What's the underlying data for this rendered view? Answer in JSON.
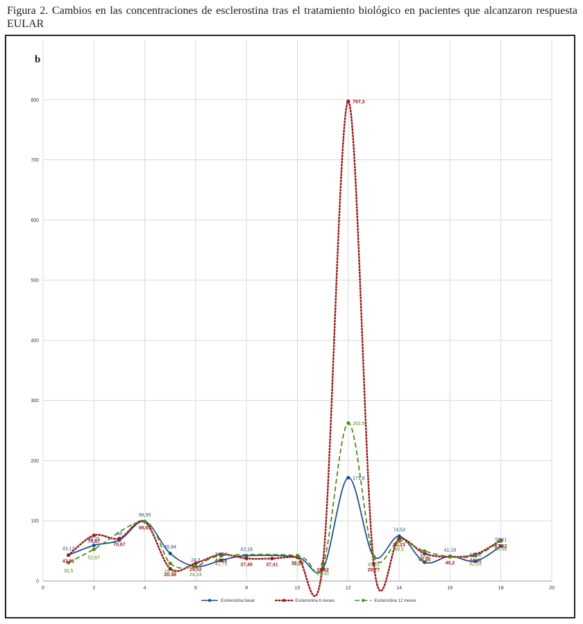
{
  "caption": "Figura 2. Cambios en las concentraciones de esclerostina tras el tratamiento biológico en pacientes que alcanzaron respuesta EULAR",
  "panel_label": "b",
  "chart_data": {
    "type": "line",
    "title": "",
    "xlabel": "",
    "ylabel": "",
    "xlim": [
      0,
      20
    ],
    "ylim": [
      0,
      900
    ],
    "x_ticks": [
      0,
      2,
      4,
      6,
      8,
      10,
      12,
      14,
      16,
      18,
      20
    ],
    "y_ticks": [
      0,
      100,
      200,
      300,
      400,
      500,
      600,
      700,
      800
    ],
    "grid": true,
    "legend": "bottom-center",
    "series": [
      {
        "name": "Esclerostina basal",
        "color": "#1f4e8c",
        "style": "solid",
        "points": [
          [
            1,
            43.12
          ],
          [
            2,
            59.25
          ],
          [
            3,
            68
          ],
          [
            4,
            98.95
          ],
          [
            5,
            45.84
          ],
          [
            6,
            24.3
          ],
          [
            7,
            34.24
          ],
          [
            8,
            42.18
          ],
          [
            10,
            39.55
          ],
          [
            11,
            20
          ],
          [
            12,
            171.8
          ],
          [
            13,
            40.81
          ],
          [
            14,
            74.53
          ],
          [
            15,
            31.2
          ],
          [
            16,
            41.18
          ],
          [
            17,
            33.02
          ],
          [
            18,
            58.11
          ]
        ],
        "labels": [
          {
            "x": 1,
            "text": "43,12"
          },
          {
            "x": 2,
            "text": "59,25"
          },
          {
            "x": 3,
            "text": "68"
          },
          {
            "x": 4,
            "text": "98,95"
          },
          {
            "x": 5,
            "text": "45,84"
          },
          {
            "x": 6,
            "text": "24,3"
          },
          {
            "x": 7,
            "text": "34,24"
          },
          {
            "x": 8,
            "text": "42,18"
          },
          {
            "x": 12,
            "text": "171,8"
          },
          {
            "x": 14,
            "text": "74,53"
          },
          {
            "x": 15,
            "text": "31,2"
          },
          {
            "x": 16,
            "text": "41,18"
          },
          {
            "x": 17,
            "text": "33,02"
          },
          {
            "x": 18,
            "text": "58,11"
          }
        ]
      },
      {
        "name": "Esclerostina 6 meses",
        "color": "#9b1b1b",
        "style": "dotted",
        "points": [
          [
            1,
            43.01
          ],
          [
            2,
            75.87
          ],
          [
            3,
            70.67
          ],
          [
            4,
            98.63
          ],
          [
            5,
            20.48
          ],
          [
            6,
            29.52
          ],
          [
            7,
            44.26
          ],
          [
            8,
            37.46
          ],
          [
            9,
            37.41
          ],
          [
            10,
            39.55
          ],
          [
            11,
            28.62
          ],
          [
            12,
            797.3
          ],
          [
            13,
            28.77
          ],
          [
            14,
            70.23
          ],
          [
            15,
            45.55
          ],
          [
            16,
            40.2
          ],
          [
            17,
            44.21
          ],
          [
            18,
            67.82
          ]
        ],
        "labels": [
          {
            "x": 1,
            "text": "43,01"
          },
          {
            "x": 2,
            "text": "75,87"
          },
          {
            "x": 3,
            "text": "70,67"
          },
          {
            "x": 4,
            "text": "98,63"
          },
          {
            "x": 5,
            "text": "20,48"
          },
          {
            "x": 6,
            "text": "29,52"
          },
          {
            "x": 7,
            "text": "44,26"
          },
          {
            "x": 8,
            "text": "37,46"
          },
          {
            "x": 9,
            "text": "37,41"
          },
          {
            "x": 10,
            "text": "39,55"
          },
          {
            "x": 11,
            "text": "28,62"
          },
          {
            "x": 12,
            "text": "797,3"
          },
          {
            "x": 13,
            "text": "28,77"
          },
          {
            "x": 14,
            "text": "70,23"
          },
          {
            "x": 15,
            "text": "45,55"
          },
          {
            "x": 16,
            "text": "40,2"
          },
          {
            "x": 17,
            "text": "44,21"
          },
          {
            "x": 18,
            "text": "67,82"
          }
        ]
      },
      {
        "name": "Esclerostina 12 meses",
        "color": "#4e8a1a",
        "style": "dashed",
        "points": [
          [
            1,
            30.5
          ],
          [
            2,
            52.67
          ],
          [
            4,
            98.5
          ],
          [
            5,
            29.36
          ],
          [
            6,
            24.24
          ],
          [
            7,
            41.79
          ],
          [
            10,
            42.26
          ],
          [
            11,
            25.95
          ],
          [
            12,
            262.5
          ],
          [
            13,
            40.81
          ],
          [
            14,
            66.5
          ],
          [
            15,
            49.73
          ],
          [
            16,
            40.5
          ],
          [
            17,
            42.03
          ],
          [
            18,
            66.56
          ]
        ],
        "labels": [
          {
            "x": 1,
            "text": "30,5"
          },
          {
            "x": 2,
            "text": "52,67"
          },
          {
            "x": 5,
            "text": "29,36"
          },
          {
            "x": 6,
            "text": "24,24"
          },
          {
            "x": 7,
            "text": "41,79"
          },
          {
            "x": 10,
            "text": "42,26"
          },
          {
            "x": 11,
            "text": "25,95"
          },
          {
            "x": 12,
            "text": "262,5"
          },
          {
            "x": 13,
            "text": "40,81"
          },
          {
            "x": 14,
            "text": "66,5"
          },
          {
            "x": 15,
            "text": "49,73"
          },
          {
            "x": 17,
            "text": "42,03"
          },
          {
            "x": 18,
            "text": "66,56"
          }
        ]
      }
    ]
  }
}
